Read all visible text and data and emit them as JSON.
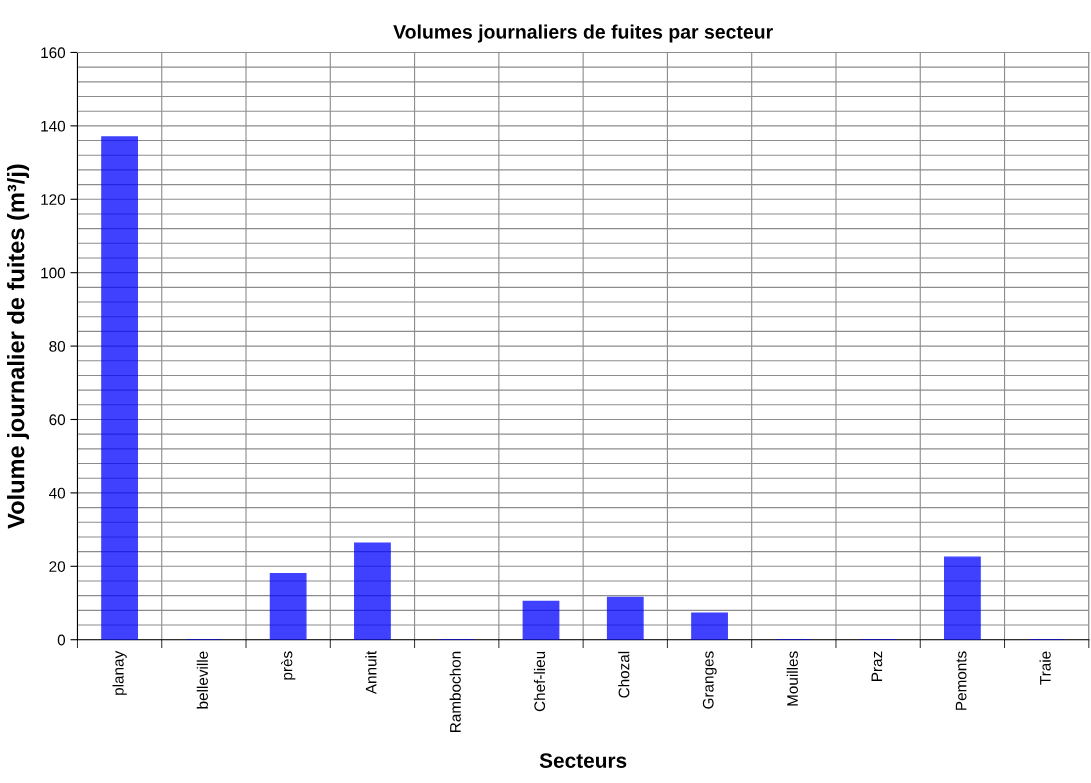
{
  "chart_data": {
    "type": "bar",
    "title": "Volumes journaliers de fuites par secteur",
    "xlabel": "Secteurs",
    "ylabel": "Volume journalier de fuites (m³/j)",
    "categories": [
      "planay",
      "belleville",
      "près",
      "Annuit",
      "Rambochon",
      "Chef-lieu",
      "Chozal",
      "Granges",
      "Mouilles",
      "Praz",
      "Pemonts",
      "Traie"
    ],
    "values": [
      137,
      0,
      18,
      26.3,
      0,
      10.4,
      11.5,
      7.2,
      0,
      0,
      22.5,
      0
    ],
    "color": "#0000ff",
    "ylim": [
      0,
      160
    ],
    "yticks": [
      0,
      {
        "value": 4,
        "label": null
      },
      {
        "value": 8,
        "label": null
      },
      {
        "value": 12,
        "label": null
      },
      {
        "value": 16,
        "label": null
      },
      20,
      {
        "value": 24,
        "label": null
      },
      {
        "value": 28,
        "label": null
      },
      {
        "value": 32,
        "label": null
      },
      {
        "value": 36,
        "label": null
      },
      40,
      {
        "value": 44,
        "label": null
      },
      {
        "value": 48,
        "label": null
      },
      {
        "value": 52,
        "label": null
      },
      {
        "value": 56,
        "label": null
      },
      60,
      {
        "value": 64,
        "label": null
      },
      {
        "value": 68,
        "label": null
      },
      {
        "value": 72,
        "label": null
      },
      {
        "value": 76,
        "label": null
      },
      80,
      {
        "value": 84,
        "label": null
      },
      {
        "value": 88,
        "label": null
      },
      {
        "value": 92,
        "label": null
      },
      {
        "value": 96,
        "label": null
      },
      100,
      {
        "value": 104,
        "label": null
      },
      {
        "value": 108,
        "label": null
      },
      {
        "value": 112,
        "label": null
      },
      {
        "value": 116,
        "label": null
      },
      120,
      {
        "value": 124,
        "label": null
      },
      {
        "value": 128,
        "label": null
      },
      {
        "value": 132,
        "label": null
      },
      {
        "value": 136,
        "label": null
      },
      140,
      {
        "value": 144,
        "label": null
      },
      {
        "value": 148,
        "label": null
      },
      {
        "value": 152,
        "label": null
      },
      {
        "value": 156,
        "label": null
      },
      160
    ],
    "grid": true
  }
}
